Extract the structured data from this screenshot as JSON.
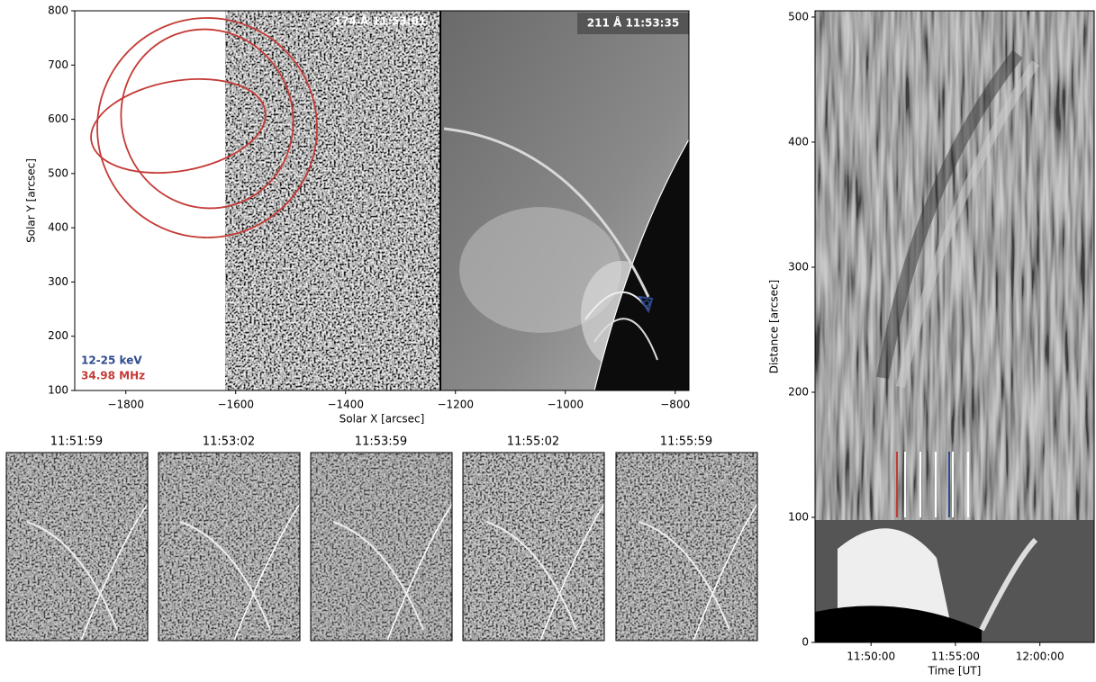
{
  "chart_data": [
    {
      "type": "image",
      "xlabel": "Solar X [arcsec]",
      "ylabel": "Solar Y [arcsec]",
      "xlim": [
        -1893,
        -775
      ],
      "ylim": [
        100,
        800
      ],
      "xticks": [
        {
          "value": -1800,
          "label": "−1800"
        },
        {
          "value": -1600,
          "label": "−1600"
        },
        {
          "value": -1400,
          "label": "−1400"
        },
        {
          "value": -1200,
          "label": "−1200"
        },
        {
          "value": -1000,
          "label": "−1000"
        },
        {
          "value": -800,
          "label": "−800"
        }
      ],
      "yticks": [
        100,
        200,
        300,
        400,
        500,
        600,
        700,
        800
      ],
      "channels": [
        "174 Å 11:53:01",
        "211 Å 11:53:35"
      ],
      "series": [
        {
          "name": "12-25 keV",
          "color": "#2e4a8e"
        },
        {
          "name": "34.98 MHz",
          "color": "#c43a36"
        }
      ]
    },
    {
      "type": "image",
      "titles": [
        "11:51:59",
        "11:53:02",
        "11:53:59",
        "11:55:02",
        "11:55:59"
      ]
    },
    {
      "type": "image",
      "xlabel": "Time [UT]",
      "ylabel": "Distance [arcsec]",
      "xlim": [
        "11:46:41",
        "12:03:13"
      ],
      "ylim": [
        0,
        505
      ],
      "xticks": [
        "11:50:00",
        "11:55:00",
        "12:00:00"
      ],
      "yticks": [
        0,
        100,
        200,
        300,
        400,
        500
      ]
    }
  ]
}
